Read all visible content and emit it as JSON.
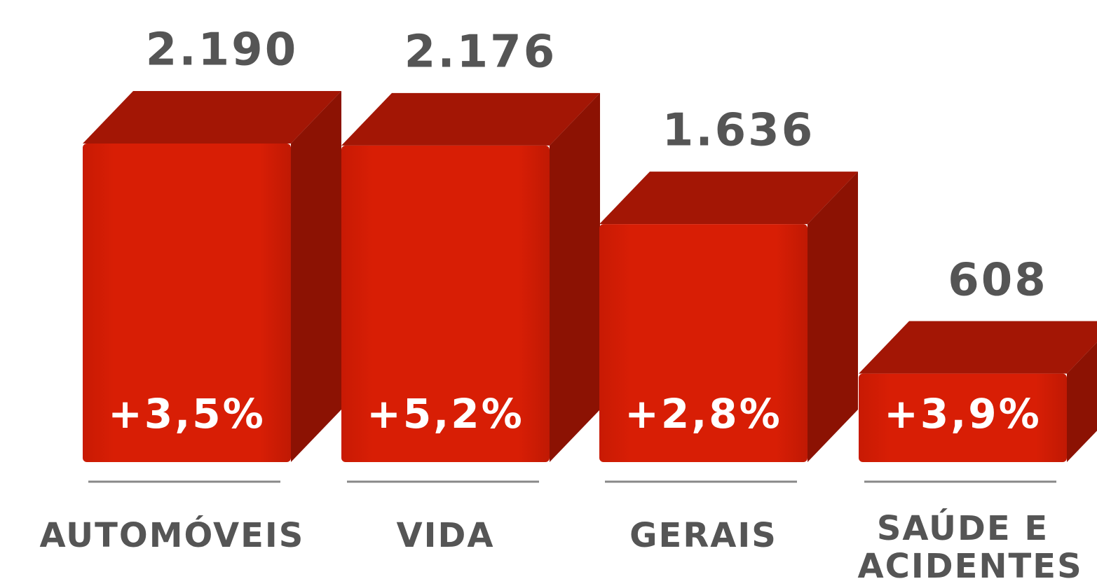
{
  "chart_data": {
    "type": "bar3d",
    "categories": [
      "AUTOMÓVEIS",
      "VIDA",
      "GERAIS",
      "SAÚDE E ACIDENTES"
    ],
    "values": [
      2190,
      2176,
      1636,
      608
    ],
    "value_labels": [
      "2.190",
      "2.176",
      "1.636",
      "608"
    ],
    "annotations": [
      "+3,5%",
      "+5,2%",
      "+2,8%",
      "+3,9%"
    ],
    "color": "#d81e05"
  }
}
